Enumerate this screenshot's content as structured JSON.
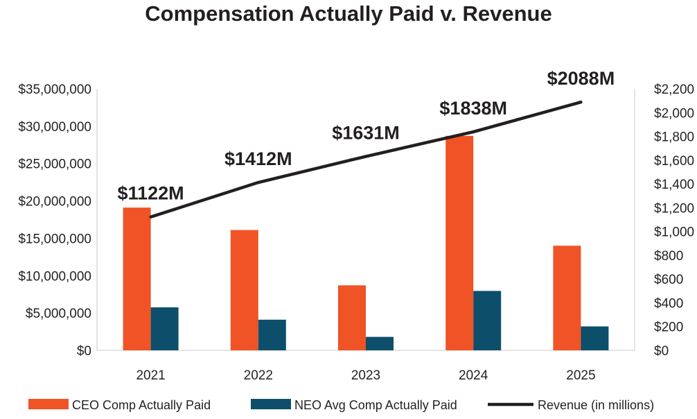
{
  "chart_data": {
    "type": "bar",
    "title": "Compensation Actually Paid v. Revenue",
    "categories": [
      "2021",
      "2022",
      "2023",
      "2024",
      "2025"
    ],
    "series": [
      {
        "name": "CEO Comp Actually Paid",
        "kind": "bar",
        "axis": "left",
        "values": [
          19100000,
          16100000,
          8700000,
          28700000,
          14000000
        ]
      },
      {
        "name": "NEO Avg Comp Actually Paid",
        "kind": "bar",
        "axis": "left",
        "values": [
          5750000,
          4100000,
          1800000,
          7950000,
          3200000
        ]
      },
      {
        "name": "Revenue (in millions)",
        "kind": "line",
        "axis": "right",
        "values": [
          1122,
          1412,
          1631,
          1838,
          2088
        ],
        "labels": [
          "$1122M",
          "$1412M",
          "$1631M",
          "$1838M",
          "$2088M"
        ]
      }
    ],
    "y_left": {
      "lim": [
        0,
        35000000
      ],
      "ticks": [
        0,
        5000000,
        10000000,
        15000000,
        20000000,
        25000000,
        30000000,
        35000000
      ],
      "tick_labels": [
        "$0",
        "$5,000,000",
        "$10,000,000",
        "$15,000,000",
        "$20,000,000",
        "$25,000,000",
        "$30,000,000",
        "$35,000,000"
      ]
    },
    "y_right": {
      "lim": [
        0,
        2200
      ],
      "ticks": [
        0,
        200,
        400,
        600,
        800,
        1000,
        1200,
        1400,
        1600,
        1800,
        2000,
        2200
      ],
      "tick_labels": [
        "$0",
        "$200",
        "$400",
        "$600",
        "$800",
        "$1,000",
        "$1,200",
        "$1,400",
        "$1,600",
        "$1,800",
        "$2,000",
        "$2,200"
      ]
    },
    "grid": false,
    "legend_position": "bottom",
    "colors": {
      "ceo": "#ef5326",
      "neo": "#0d4f6b",
      "revenue": "#231f20",
      "axis": "#c8c8c8"
    }
  }
}
